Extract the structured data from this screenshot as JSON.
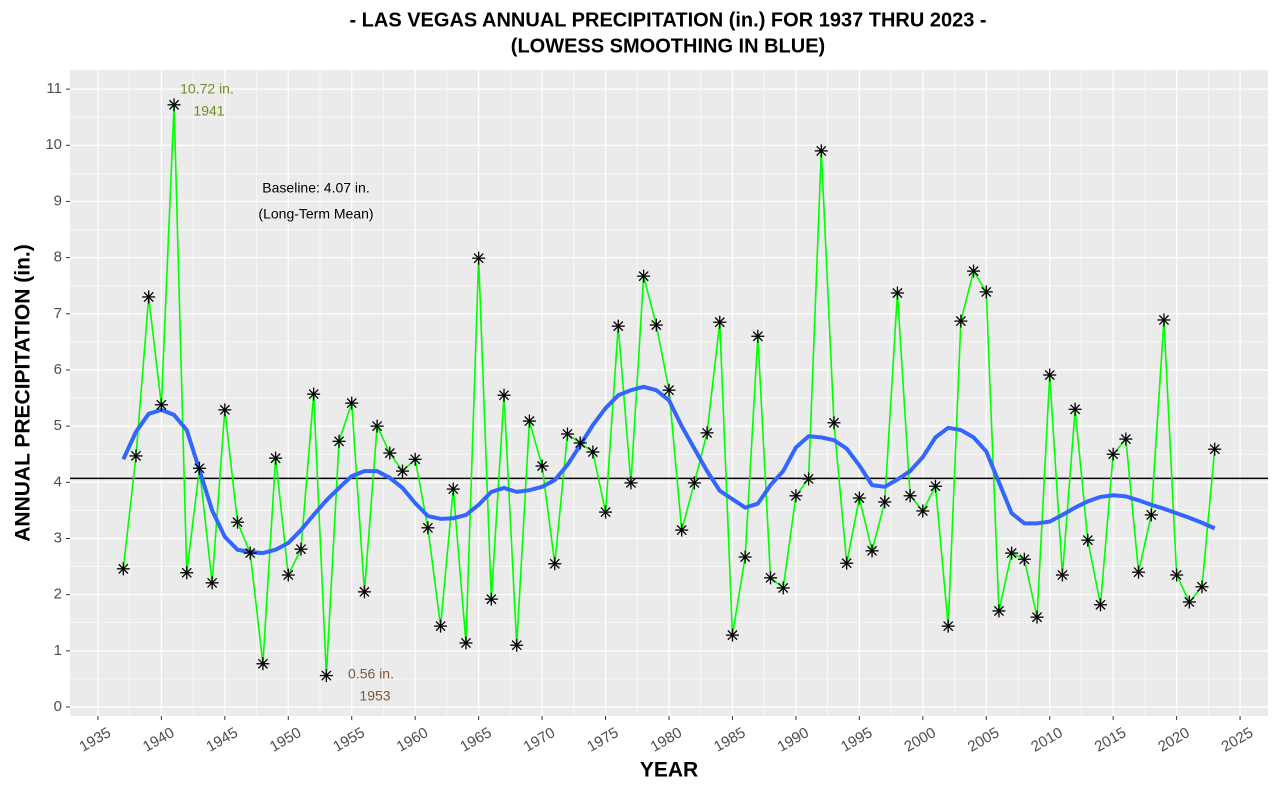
{
  "chart_data": {
    "type": "line",
    "title": [
      "- LAS VEGAS ANNUAL PRECIPITATION (in.) FOR 1937 THRU 2023 -",
      "(LOWESS SMOOTHING IN BLUE)"
    ],
    "x_label": "YEAR",
    "y_label": "ANNUAL PRECIPITATION (in.)",
    "x": [
      1937,
      1938,
      1939,
      1940,
      1941,
      1942,
      1943,
      1944,
      1945,
      1946,
      1947,
      1948,
      1949,
      1950,
      1951,
      1952,
      1953,
      1954,
      1955,
      1956,
      1957,
      1958,
      1959,
      1960,
      1961,
      1962,
      1963,
      1964,
      1965,
      1966,
      1967,
      1968,
      1969,
      1970,
      1971,
      1972,
      1973,
      1974,
      1975,
      1976,
      1977,
      1978,
      1979,
      1980,
      1981,
      1982,
      1983,
      1984,
      1985,
      1986,
      1987,
      1988,
      1989,
      1990,
      1991,
      1992,
      1993,
      1994,
      1995,
      1996,
      1997,
      1998,
      1999,
      2000,
      2001,
      2002,
      2003,
      2004,
      2005,
      2006,
      2007,
      2008,
      2009,
      2010,
      2011,
      2012,
      2013,
      2014,
      2015,
      2016,
      2017,
      2018,
      2019,
      2020,
      2021,
      2022,
      2023
    ],
    "series": [
      {
        "color": "#00ff00",
        "marker": "asterisk",
        "marker_color": "#000000",
        "values": [
          2.46,
          4.47,
          7.3,
          5.38,
          10.72,
          2.39,
          4.25,
          2.21,
          5.29,
          3.29,
          2.74,
          0.77,
          4.43,
          2.35,
          2.81,
          5.57,
          0.56,
          4.73,
          5.41,
          2.05,
          5.0,
          4.52,
          4.2,
          4.41,
          3.19,
          1.44,
          3.88,
          1.14,
          7.99,
          1.92,
          5.55,
          1.1,
          5.09,
          4.29,
          2.55,
          4.86,
          4.7,
          4.54,
          3.47,
          6.78,
          3.99,
          7.67,
          6.8,
          5.64,
          3.15,
          3.99,
          4.88,
          6.85,
          1.28,
          2.67,
          6.6,
          2.3,
          2.12,
          3.76,
          4.06,
          9.9,
          5.06,
          2.56,
          3.72,
          2.78,
          3.65,
          7.37,
          3.76,
          3.49,
          3.93,
          1.44,
          6.87,
          7.76,
          7.39,
          1.71,
          2.74,
          2.63,
          1.6,
          5.91,
          2.35,
          5.3,
          2.97,
          1.82,
          4.5,
          4.77,
          2.4,
          3.42,
          6.89,
          2.35,
          1.87,
          2.14,
          4.59
        ]
      },
      {
        "color": "#3366ff",
        "line_width": 4,
        "values": [
          4.41,
          4.9,
          5.22,
          5.29,
          5.2,
          4.93,
          4.22,
          3.5,
          3.03,
          2.8,
          2.76,
          2.74,
          2.8,
          2.92,
          3.15,
          3.42,
          3.68,
          3.9,
          4.11,
          4.2,
          4.2,
          4.08,
          3.9,
          3.63,
          3.4,
          3.35,
          3.36,
          3.42,
          3.6,
          3.83,
          3.9,
          3.83,
          3.86,
          3.92,
          4.04,
          4.31,
          4.66,
          5.02,
          5.32,
          5.55,
          5.64,
          5.7,
          5.64,
          5.46,
          5.0,
          4.6,
          4.2,
          3.85,
          3.7,
          3.55,
          3.62,
          3.95,
          4.2,
          4.62,
          4.82,
          4.8,
          4.75,
          4.6,
          4.3,
          3.95,
          3.92,
          4.05,
          4.2,
          4.45,
          4.8,
          4.97,
          4.93,
          4.8,
          4.55,
          4.0,
          3.45,
          3.27,
          3.27,
          3.3,
          3.42,
          3.55,
          3.66,
          3.74,
          3.77,
          3.75,
          3.68,
          3.6,
          3.53,
          3.45,
          3.37,
          3.28,
          3.18
        ]
      }
    ],
    "baseline": {
      "value": 4.07,
      "color": "#000000"
    },
    "annotations": [
      {
        "lines": [
          "10.72 in.",
          "1941"
        ],
        "color": "#6b8e23"
      },
      {
        "lines": [
          "0.56 in.",
          "1953"
        ],
        "color": "#7a5a3a"
      },
      {
        "lines": [
          "Baseline: 4.07 in.",
          "(Long-Term Mean)"
        ],
        "color": "#000000"
      }
    ],
    "xlim": [
      1932.8,
      2027.2
    ],
    "ylim": [
      -0.16,
      11.34
    ],
    "xticks": [
      1935,
      1940,
      1945,
      1950,
      1955,
      1960,
      1965,
      1970,
      1975,
      1980,
      1985,
      1990,
      1995,
      2000,
      2005,
      2010,
      2015,
      2020,
      2025
    ],
    "yticks": [
      0,
      1,
      2,
      3,
      4,
      5,
      6,
      7,
      8,
      9,
      10,
      11
    ],
    "grid": true,
    "minor_grid": true
  }
}
